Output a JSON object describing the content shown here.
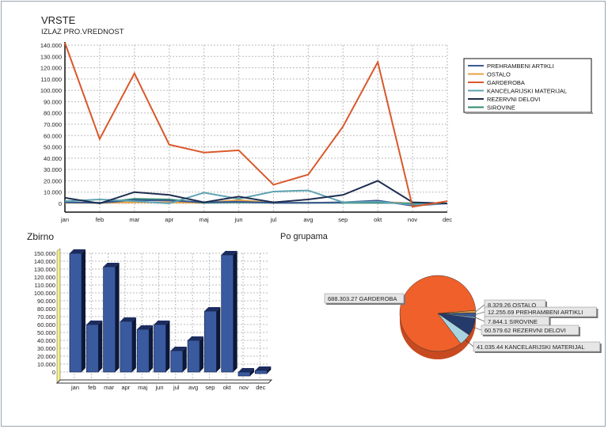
{
  "chart_data": [
    {
      "type": "line",
      "title": "VRSTE",
      "subtitle": "IZLAZ PRO.VREDNOST",
      "categories": [
        "jan",
        "feb",
        "mar",
        "apr",
        "maj",
        "jun",
        "jul",
        "avg",
        "sep",
        "okt",
        "nov",
        "dec"
      ],
      "yticks": [
        "140.000",
        "130.000",
        "120.000",
        "110.000",
        "100.000",
        "90.000",
        "80.000",
        "70.000",
        "60.000",
        "50.000",
        "40.000",
        "30.000",
        "20.000",
        "10.000",
        "0"
      ],
      "ylim": [
        -8000,
        142000
      ],
      "grid": true,
      "legend_position": "right",
      "series": [
        {
          "name": "PREHRAMBENI ARTIKLI",
          "color": "#3a5a94",
          "values": [
            1000,
            500,
            3000,
            2500,
            1000,
            1500,
            500,
            500,
            1000,
            2500,
            -2000,
            0
          ]
        },
        {
          "name": "OSTALO",
          "color": "#e8a040",
          "values": [
            500,
            500,
            1000,
            1000,
            500,
            3000,
            500,
            500,
            1000,
            1500,
            0,
            0
          ]
        },
        {
          "name": "GARDEROBA",
          "color": "#d9582b",
          "values": [
            142000,
            57000,
            115000,
            52000,
            45000,
            47000,
            16500,
            25500,
            68000,
            125000,
            -3000,
            2000
          ]
        },
        {
          "name": "KANCELARIJSKI MATERIJAL",
          "color": "#5fa3b3",
          "values": [
            2000,
            3500,
            2000,
            0,
            9500,
            4000,
            10500,
            11500,
            1000,
            1500,
            -1000,
            0
          ]
        },
        {
          "name": "REZERVNI DELOVI",
          "color": "#1f2f50",
          "values": [
            5000,
            0,
            10000,
            7500,
            1000,
            6000,
            1000,
            3500,
            7500,
            20000,
            1000,
            0
          ]
        },
        {
          "name": "SIROVINE",
          "color": "#2f8a70",
          "values": [
            1000,
            500,
            4000,
            3500,
            500,
            1000,
            500,
            500,
            500,
            500,
            0,
            0
          ]
        }
      ]
    },
    {
      "type": "bar",
      "title": "Zbirno",
      "categories": [
        "jan",
        "feb",
        "mar",
        "apr",
        "maj",
        "jun",
        "jul",
        "avg",
        "sep",
        "okt",
        "nov",
        "dec"
      ],
      "yticks": [
        "150.000",
        "140.000",
        "130.000",
        "120.000",
        "110.000",
        "100.000",
        "90.000",
        "80.000",
        "70.000",
        "60.000",
        "50.000",
        "40.000",
        "30.000",
        "20.000",
        "10.000",
        "0"
      ],
      "ylim": [
        0,
        150000
      ],
      "grid": true,
      "color": "#3a5aa0",
      "values": [
        150000,
        60000,
        133000,
        64000,
        54000,
        60000,
        27000,
        40000,
        77000,
        148000,
        -5000,
        2000
      ]
    },
    {
      "type": "pie",
      "title": "Po grupama",
      "slices": [
        {
          "label": "688.303.27 GARDEROBA",
          "value": 688303.27,
          "color": "#f0602a"
        },
        {
          "label": "8.329.26 OSTALO",
          "value": 8329.26,
          "color": "#e8a040"
        },
        {
          "label": "12.255.69 PREHRAMBENI ARTIKLI",
          "value": 12255.69,
          "color": "#3a5a94"
        },
        {
          "label": "7.844.1 SIROVINE",
          "value": 7844.1,
          "color": "#6a86b8"
        },
        {
          "label": "60.579.62 REZERVNI DELOVI",
          "value": 60579.62,
          "color": "#243a6a"
        },
        {
          "label": "41.035.44 KANCELARIJSKI MATERIJAL",
          "value": 41035.44,
          "color": "#a8d4e0"
        }
      ]
    }
  ]
}
